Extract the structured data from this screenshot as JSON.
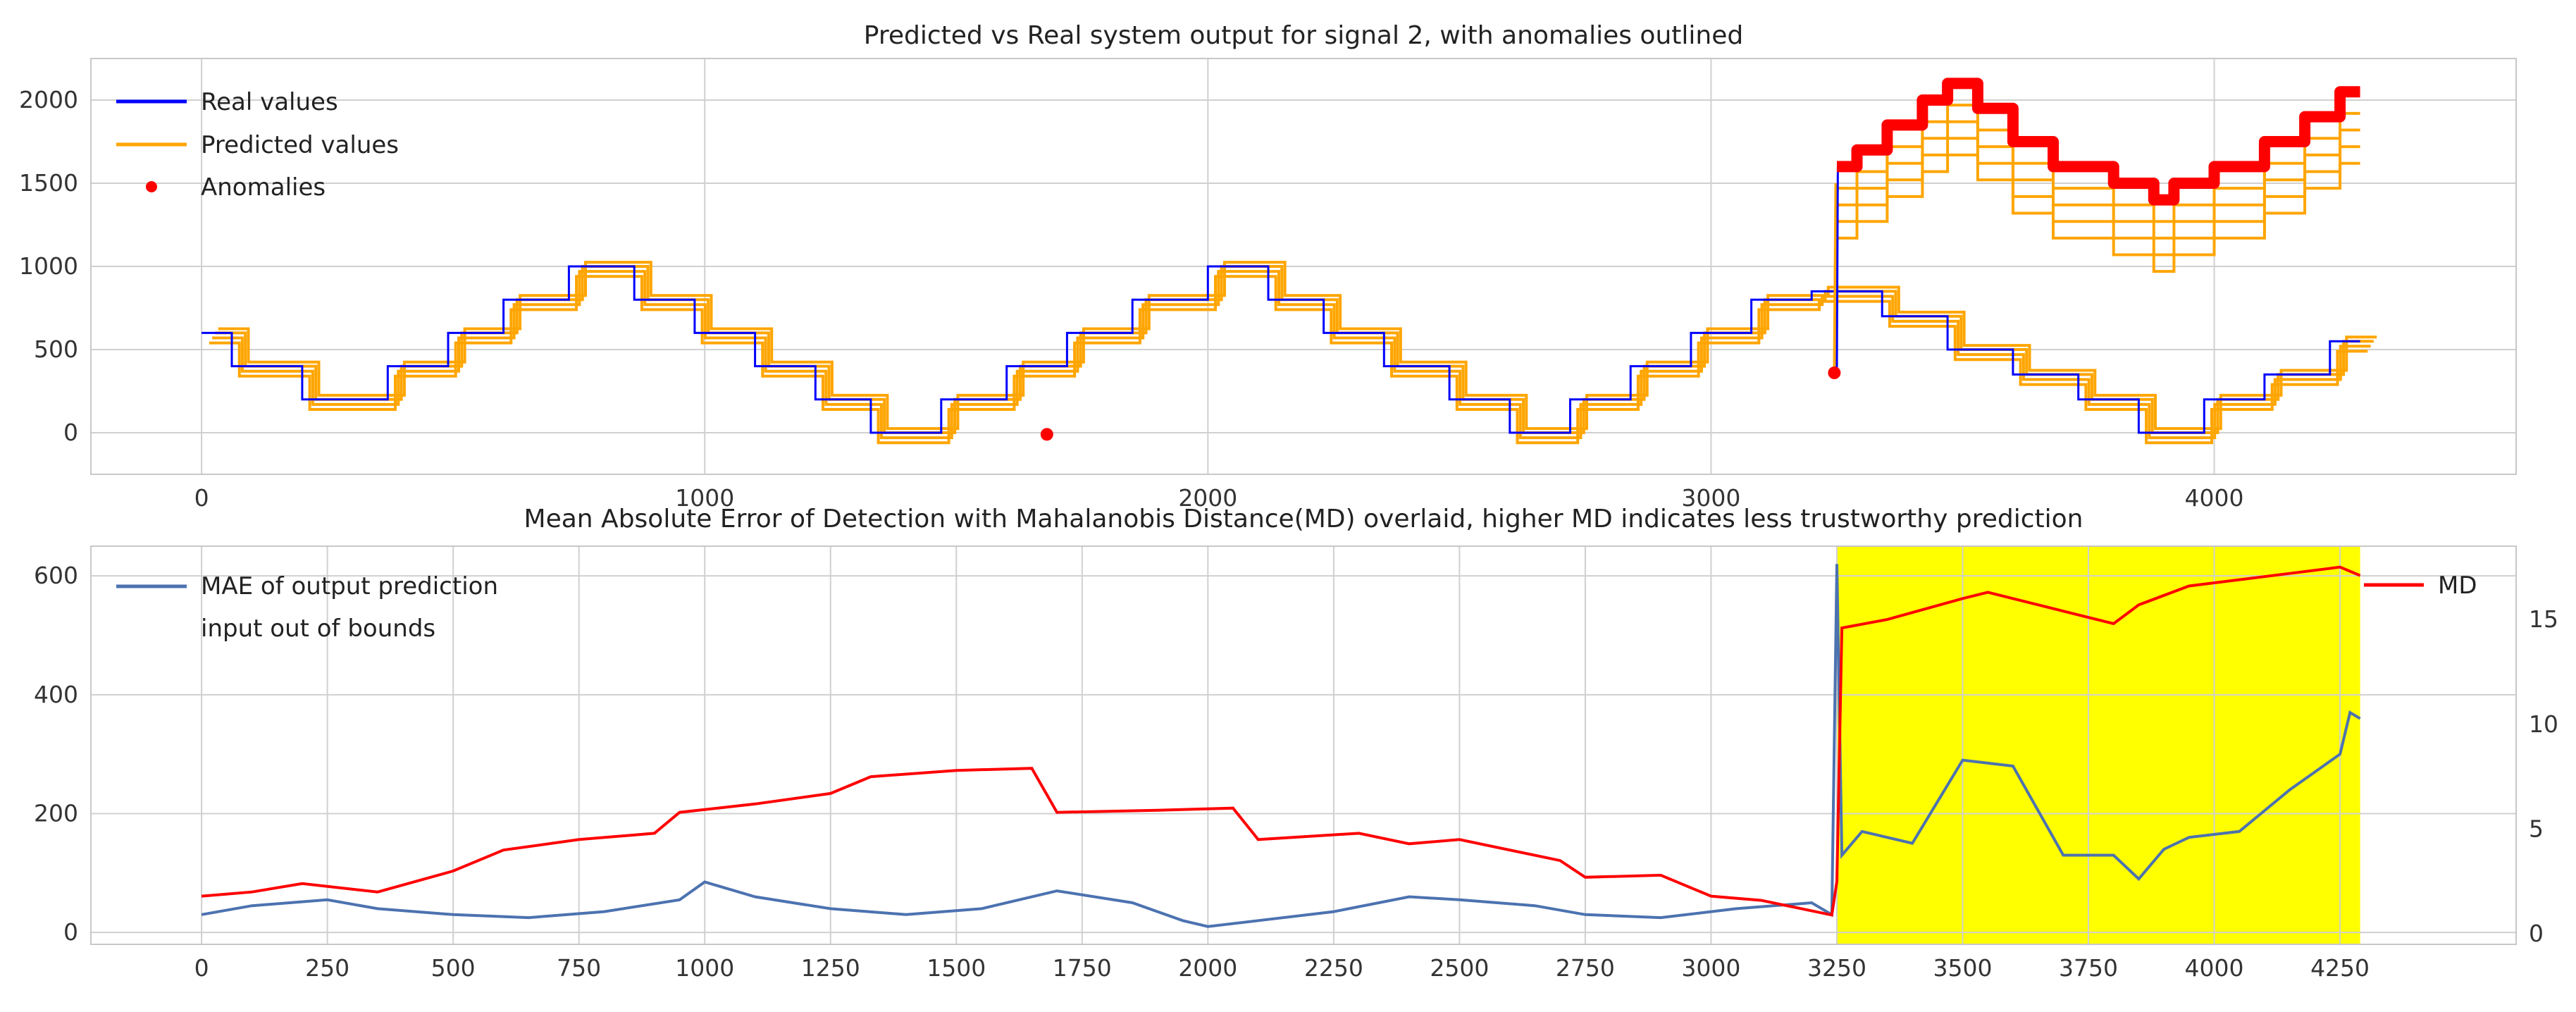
{
  "chart_data": [
    {
      "type": "line",
      "title": "Predicted vs Real system output for signal 2, with anomalies outlined",
      "xlim": [
        -220,
        4600
      ],
      "ylim": [
        -250,
        2250
      ],
      "x_ticks": [
        0,
        1000,
        2000,
        3000,
        4000
      ],
      "y_ticks": [
        0,
        500,
        1000,
        1500,
        2000
      ],
      "grid": true,
      "legend_placement": "upper-left",
      "series": [
        {
          "name": "Real values",
          "color": "#0000ff",
          "points": [
            [
              0,
              600
            ],
            [
              60,
              600
            ],
            [
              60,
              400
            ],
            [
              200,
              400
            ],
            [
              200,
              200
            ],
            [
              370,
              200
            ],
            [
              370,
              400
            ],
            [
              490,
              400
            ],
            [
              490,
              600
            ],
            [
              600,
              600
            ],
            [
              600,
              800
            ],
            [
              730,
              800
            ],
            [
              730,
              1000
            ],
            [
              860,
              1000
            ],
            [
              860,
              800
            ],
            [
              980,
              800
            ],
            [
              980,
              600
            ],
            [
              1100,
              600
            ],
            [
              1100,
              400
            ],
            [
              1220,
              400
            ],
            [
              1220,
              200
            ],
            [
              1330,
              200
            ],
            [
              1330,
              0
            ],
            [
              1470,
              0
            ],
            [
              1470,
              200
            ],
            [
              1600,
              200
            ],
            [
              1600,
              400
            ],
            [
              1720,
              400
            ],
            [
              1720,
              600
            ],
            [
              1850,
              600
            ],
            [
              1850,
              800
            ],
            [
              2000,
              800
            ],
            [
              2000,
              1000
            ],
            [
              2120,
              1000
            ],
            [
              2120,
              800
            ],
            [
              2230,
              800
            ],
            [
              2230,
              600
            ],
            [
              2350,
              600
            ],
            [
              2350,
              400
            ],
            [
              2480,
              400
            ],
            [
              2480,
              200
            ],
            [
              2600,
              200
            ],
            [
              2600,
              0
            ],
            [
              2720,
              0
            ],
            [
              2720,
              200
            ],
            [
              2840,
              200
            ],
            [
              2840,
              400
            ],
            [
              2960,
              400
            ],
            [
              2960,
              600
            ],
            [
              3080,
              600
            ],
            [
              3080,
              800
            ],
            [
              3200,
              800
            ],
            [
              3200,
              850
            ],
            [
              3340,
              850
            ],
            [
              3340,
              700
            ],
            [
              3470,
              700
            ],
            [
              3470,
              500
            ],
            [
              3600,
              500
            ],
            [
              3600,
              350
            ],
            [
              3730,
              350
            ],
            [
              3730,
              200
            ],
            [
              3850,
              200
            ],
            [
              3850,
              0
            ],
            [
              3980,
              0
            ],
            [
              3980,
              200
            ],
            [
              4100,
              200
            ],
            [
              4100,
              350
            ],
            [
              4230,
              350
            ],
            [
              4230,
              550
            ],
            [
              4290,
              550
            ]
          ],
          "note_segment_2": "piecewise constant stepping between levels"
        },
        {
          "name": "Predicted values",
          "color": "#ffa500"
        },
        {
          "name": "Anomalies",
          "color": "#ff0000",
          "marker": "dot"
        }
      ]
    },
    {
      "type": "line",
      "title": "Mean Absolute Error of Detection with Mahalanobis Distance(MD) overlaid, higher MD indicates less trustworthy prediction",
      "xlim": [
        -220,
        4600
      ],
      "ylim": [
        -20,
        650
      ],
      "y2lim": [
        -0.5,
        18.5
      ],
      "x_ticks": [
        0,
        250,
        500,
        750,
        1000,
        1250,
        1500,
        1750,
        2000,
        2250,
        2500,
        2750,
        3000,
        3250,
        3500,
        3750,
        4000,
        4250
      ],
      "y_ticks": [
        0,
        200,
        400,
        600
      ],
      "y2_ticks": [
        0,
        5,
        10,
        15
      ],
      "grid": true,
      "legend_placement": "upper-left",
      "highlight_region": {
        "x_start": 3250,
        "x_end": 4290,
        "color": "#ffff00",
        "label": "input out of bounds"
      },
      "series": [
        {
          "name": "MAE of output prediction",
          "color": "#4c72b0",
          "axis": "left",
          "x": [
            0,
            100,
            250,
            350,
            500,
            650,
            800,
            950,
            1000,
            1100,
            1250,
            1400,
            1550,
            1700,
            1850,
            1950,
            2000,
            2100,
            2250,
            2400,
            2500,
            2650,
            2750,
            2900,
            3050,
            3200,
            3240,
            3250,
            3260,
            3300,
            3400,
            3500,
            3600,
            3700,
            3800,
            3850,
            3900,
            3950,
            4050,
            4150,
            4250,
            4270,
            4290
          ],
          "values": [
            30,
            45,
            55,
            40,
            30,
            25,
            35,
            55,
            85,
            60,
            40,
            30,
            40,
            70,
            50,
            20,
            10,
            20,
            35,
            60,
            55,
            45,
            30,
            25,
            40,
            50,
            30,
            620,
            130,
            170,
            150,
            290,
            280,
            130,
            130,
            90,
            140,
            160,
            170,
            240,
            300,
            370,
            360
          ]
        },
        {
          "name": "MD",
          "color": "#ff0000",
          "axis": "right",
          "x": [
            0,
            100,
            200,
            350,
            500,
            600,
            750,
            900,
            950,
            1100,
            1250,
            1330,
            1500,
            1650,
            1700,
            1900,
            2050,
            2100,
            2300,
            2400,
            2500,
            2700,
            2750,
            2900,
            3000,
            3100,
            3240,
            3250,
            3260,
            3350,
            3500,
            3550,
            3700,
            3800,
            3850,
            3950,
            4050,
            4150,
            4250,
            4290
          ],
          "values": [
            1.8,
            2.0,
            2.4,
            2.0,
            3.0,
            4.0,
            4.5,
            4.8,
            5.8,
            6.2,
            6.7,
            7.5,
            7.8,
            7.9,
            5.8,
            5.9,
            6.0,
            4.5,
            4.8,
            4.3,
            4.5,
            3.5,
            2.7,
            2.8,
            1.8,
            1.6,
            0.9,
            2.5,
            14.6,
            15.0,
            16.0,
            16.3,
            15.4,
            14.8,
            15.7,
            16.6,
            16.9,
            17.2,
            17.5,
            17.1
          ]
        }
      ]
    }
  ]
}
